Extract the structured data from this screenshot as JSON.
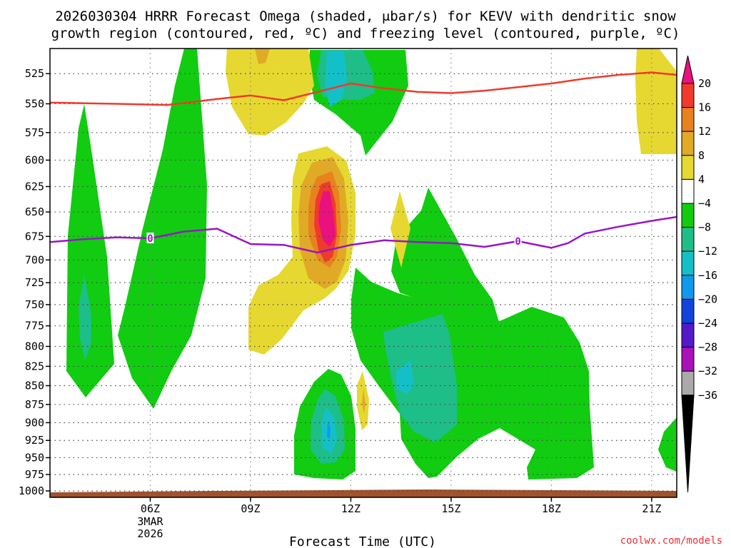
{
  "chart_data": {
    "type": "contour",
    "title_line1": "2026030304 HRRR Forecast Omega (shaded, μbar/s) for KEVV with dendritic snow",
    "title_line2": "growth region (contoured, red, ºC) and freezing level (contoured, purple, ºC)",
    "xlabel": "Forecast Time (UTC)",
    "x_ticks": [
      {
        "hour": 6,
        "label": "06Z"
      },
      {
        "hour": 9,
        "label": "09Z"
      },
      {
        "hour": 12,
        "label": "12Z"
      },
      {
        "hour": 15,
        "label": "15Z"
      },
      {
        "hour": 18,
        "label": "18Z"
      },
      {
        "hour": 21,
        "label": "21Z"
      }
    ],
    "x_date_lines": [
      "3MAR",
      "2026"
    ],
    "x_range_hours": [
      3,
      21.75
    ],
    "y_ticks": [
      525,
      550,
      575,
      600,
      625,
      650,
      675,
      700,
      725,
      750,
      775,
      800,
      825,
      850,
      875,
      900,
      925,
      950,
      975,
      1000
    ],
    "y_range_hPa": [
      505,
      1010
    ],
    "colorbar": {
      "labels": [
        "20",
        "16",
        "12",
        "8",
        "4",
        "−4",
        "−8",
        "−12",
        "−16",
        "−20",
        "−24",
        "−28",
        "−32",
        "−36"
      ],
      "colors": [
        "#e8117e",
        "#ef3a2c",
        "#e8821e",
        "#e0aa26",
        "#e6d830",
        "#ffffff",
        "#11cc11",
        "#1ebe88",
        "#14c0c8",
        "#1199ee",
        "#1144dd",
        "#5519cc",
        "#aa11bb",
        "#aaaaaa"
      ]
    },
    "shade_colors": {
      "green": "#11cc11",
      "teal": "#1ebe88",
      "cyan": "#14c0c8",
      "blue": "#1199ee",
      "yellow": "#e6d830",
      "gold": "#e0aa26",
      "orange": "#e8821e",
      "red": "#ef3a2c",
      "magenta": "#e8117e",
      "brown": "#a0522d"
    },
    "dendritic_line": {
      "color": "#ef3a2c",
      "points": [
        [
          3.0,
          549
        ],
        [
          5.0,
          550
        ],
        [
          6.5,
          551
        ],
        [
          8.0,
          546
        ],
        [
          9.0,
          543
        ],
        [
          10.0,
          547
        ],
        [
          11.0,
          540
        ],
        [
          12.0,
          533
        ],
        [
          13.0,
          537
        ],
        [
          14.0,
          540
        ],
        [
          15.0,
          541
        ],
        [
          16.0,
          539
        ],
        [
          17.0,
          536
        ],
        [
          18.0,
          533
        ],
        [
          19.0,
          529
        ],
        [
          20.0,
          526
        ],
        [
          21.0,
          524
        ],
        [
          21.75,
          526
        ]
      ]
    },
    "freezing_line": {
      "color": "#9a14c8",
      "label": "0",
      "label_hours": [
        6.0,
        17.0
      ],
      "points": [
        [
          3.0,
          681
        ],
        [
          4.0,
          678
        ],
        [
          5.0,
          676
        ],
        [
          6.0,
          677
        ],
        [
          7.0,
          670
        ],
        [
          8.0,
          667
        ],
        [
          9.0,
          683
        ],
        [
          10.0,
          684
        ],
        [
          11.0,
          692
        ],
        [
          12.0,
          684
        ],
        [
          13.0,
          679
        ],
        [
          14.0,
          681
        ],
        [
          15.0,
          682
        ],
        [
          16.0,
          686
        ],
        [
          17.0,
          680
        ],
        [
          18.0,
          687
        ],
        [
          18.5,
          682
        ],
        [
          19.0,
          672
        ],
        [
          20.0,
          665
        ],
        [
          21.0,
          659
        ],
        [
          21.75,
          655
        ]
      ]
    }
  },
  "credit": "coolwx.com/models"
}
